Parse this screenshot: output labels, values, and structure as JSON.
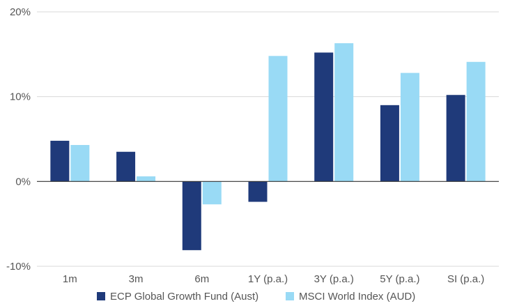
{
  "chart_data": {
    "type": "bar",
    "title": "",
    "xlabel": "",
    "ylabel": "",
    "categories": [
      "1m",
      "3m",
      "6m",
      "1Y (p.a.)",
      "3Y (p.a.)",
      "5Y (p.a.)",
      "SI (p.a.)"
    ],
    "series": [
      {
        "name": "ECP Global Growth Fund (Aust)",
        "color": "#1f3a7a",
        "values": [
          4.8,
          3.5,
          -8.1,
          -2.4,
          15.2,
          9.0,
          10.2
        ]
      },
      {
        "name": "MSCI World Index (AUD)",
        "color": "#99daf5",
        "values": [
          4.3,
          0.6,
          -2.7,
          14.8,
          16.3,
          12.8,
          14.1
        ]
      }
    ],
    "ylim": [
      -10,
      20
    ],
    "yticks": [
      -10,
      0,
      10,
      20
    ],
    "ytick_labels": [
      "-10%",
      "0%",
      "10%",
      "20%"
    ],
    "gridlines": true,
    "legend_position": "bottom"
  }
}
